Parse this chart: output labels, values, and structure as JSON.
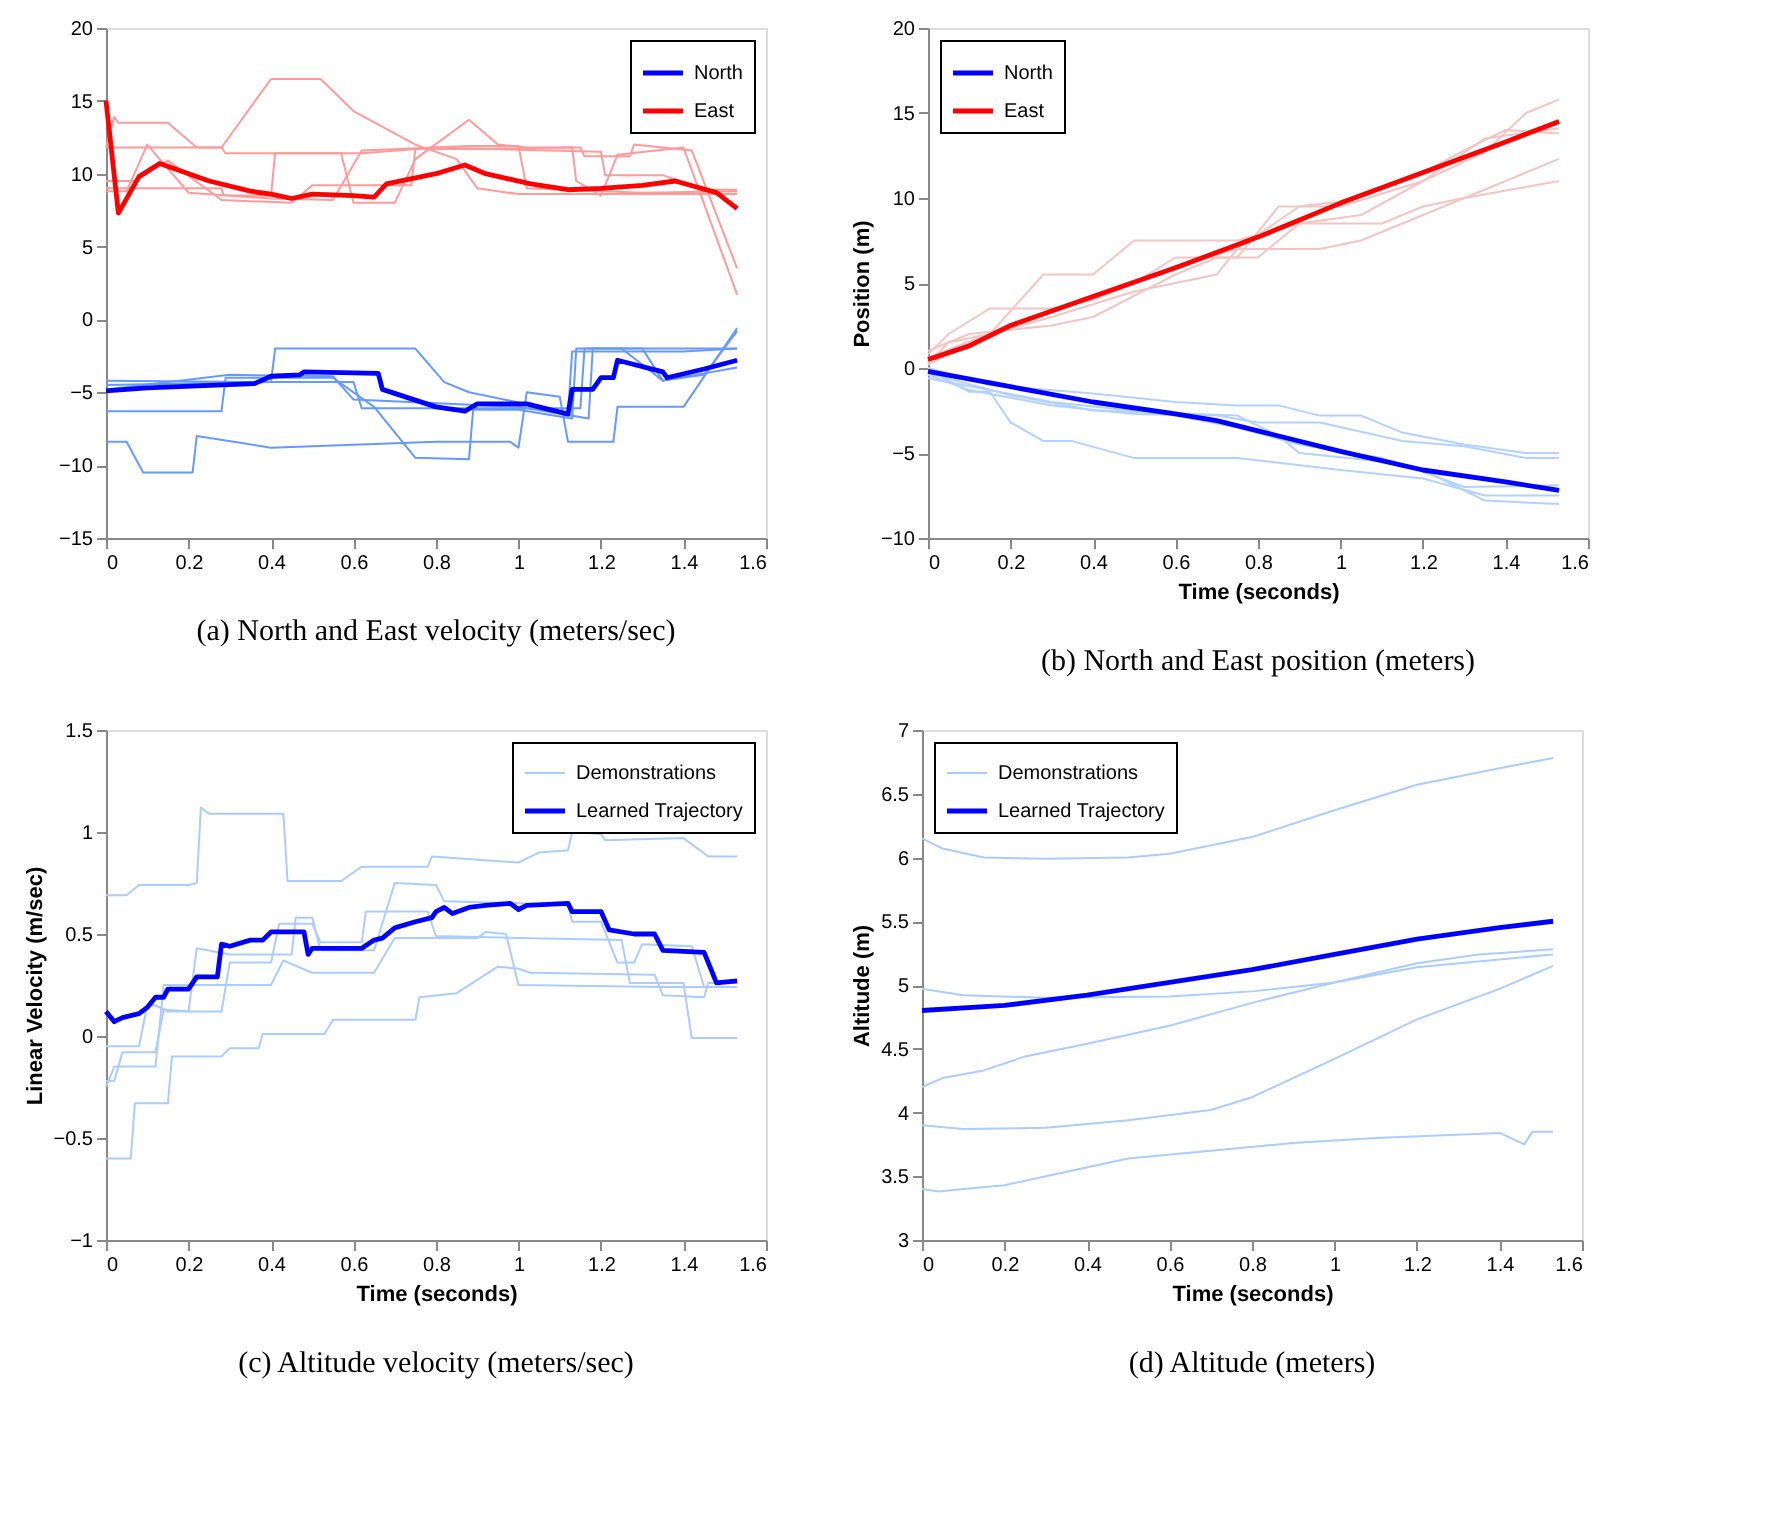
{
  "chart_data": [
    {
      "type": "line",
      "title": "(a)  North and East velocity (meters/sec)",
      "xlim": [
        0,
        1.6
      ],
      "xticks": [
        0,
        0.2,
        0.4,
        0.6,
        0.8,
        1,
        1.2,
        1.4,
        1.6
      ],
      "ylim": [
        -15,
        20
      ],
      "yticks": [
        -15,
        -10,
        -5,
        0,
        5,
        10,
        15,
        20
      ],
      "grid": false,
      "legend": "top right",
      "series": [
        {
          "color": "#ff9a9a",
          "x": [
            0,
            0.02,
            0.03,
            0.15,
            0.22,
            0.28,
            0.4,
            0.52,
            0.6,
            0.75,
            0.85,
            0.9,
            1.0,
            1.53
          ],
          "values": [
            11.8,
            13.9,
            13.5,
            13.5,
            11.8,
            11.8,
            16.5,
            16.5,
            14.3,
            12.0,
            11.0,
            9.0,
            8.6,
            8.6
          ]
        },
        {
          "color": "#ff9a9a",
          "x": [
            0,
            0.28,
            0.29,
            0.62,
            0.8,
            1.2,
            1.21,
            1.35,
            1.45,
            1.53
          ],
          "values": [
            11.8,
            11.8,
            11.4,
            11.4,
            11.8,
            11.5,
            9.9,
            9.9,
            8.9,
            8.9
          ]
        },
        {
          "color": "#ff9a9a",
          "x": [
            0,
            0.05,
            0.1,
            0.2,
            0.4,
            0.55,
            0.62,
            0.88,
            1.0,
            1.02,
            1.3,
            1.53
          ],
          "values": [
            8.8,
            8.8,
            12.0,
            8.7,
            8.3,
            8.2,
            11.6,
            11.9,
            11.9,
            9.0,
            8.7,
            8.8
          ]
        },
        {
          "color": "#ff9a9a",
          "x": [
            0,
            0.07,
            0.15,
            0.28,
            0.45,
            0.5,
            0.74,
            0.75,
            0.9,
            1.13,
            1.14,
            1.2,
            1.24,
            1.4,
            1.53
          ],
          "values": [
            9.5,
            9.5,
            10.9,
            8.2,
            8.0,
            9.2,
            9.2,
            11.7,
            11.7,
            11.8,
            9.5,
            8.5,
            11.3,
            11.8,
            1.7
          ]
        },
        {
          "color": "#ff9a9a",
          "x": [
            0,
            0.28,
            0.285,
            0.4,
            0.41,
            0.57,
            0.6,
            0.7,
            0.75,
            0.88,
            0.95,
            1.02,
            1.15,
            1.16,
            1.27,
            1.28,
            1.42,
            1.53
          ],
          "values": [
            9.0,
            9.0,
            8.5,
            8.5,
            11.4,
            11.4,
            8.0,
            8.0,
            11.0,
            13.7,
            12.0,
            11.8,
            11.8,
            11.2,
            11.2,
            12.0,
            11.6,
            3.5
          ]
        },
        {
          "color": "#6699ff",
          "x": [
            0,
            0.05,
            0.09,
            0.21,
            0.22,
            0.4,
            0.8,
            0.98,
            1.0,
            1.02,
            1.1,
            1.12,
            1.23,
            1.24,
            1.4,
            1.53
          ],
          "values": [
            -8.4,
            -8.4,
            -10.5,
            -10.5,
            -8.0,
            -8.8,
            -8.4,
            -8.4,
            -8.8,
            -5.0,
            -5.3,
            -8.4,
            -8.4,
            -6.0,
            -6.0,
            -0.6
          ]
        },
        {
          "color": "#6699ff",
          "x": [
            0,
            0.28,
            0.29,
            0.55,
            0.65,
            0.75,
            0.88,
            0.89,
            1.0,
            1.13,
            1.14,
            1.53
          ],
          "values": [
            -6.3,
            -6.3,
            -4.0,
            -4.0,
            -6.0,
            -9.5,
            -9.6,
            -6.2,
            -6.2,
            -6.8,
            -2.0,
            -2.0
          ]
        },
        {
          "color": "#6699ff",
          "x": [
            0,
            0.4,
            0.41,
            0.75,
            0.82,
            0.88,
            1.05,
            1.12,
            1.13,
            1.4,
            1.53
          ],
          "values": [
            -4.2,
            -4.3,
            -2.0,
            -2.0,
            -4.3,
            -5.0,
            -6.0,
            -6.5,
            -2.2,
            -2.2,
            -2.0
          ]
        },
        {
          "color": "#6699ff",
          "x": [
            0,
            0.4,
            0.6,
            0.62,
            0.9,
            1.15,
            1.16,
            1.3,
            1.35,
            1.53
          ],
          "values": [
            -4.5,
            -4.3,
            -4.3,
            -6.1,
            -6.1,
            -6.1,
            -2.0,
            -2.0,
            -4.2,
            -3.3
          ]
        },
        {
          "color": "#6699ff",
          "x": [
            0,
            0.3,
            0.55,
            0.6,
            1.0,
            1.17,
            1.18,
            1.25,
            1.35,
            1.45,
            1.53
          ],
          "values": [
            -4.8,
            -3.8,
            -3.9,
            -5.5,
            -6.0,
            -6.8,
            -2.0,
            -2.0,
            -4.2,
            -3.8,
            -0.8
          ]
        },
        {
          "name": "North",
          "color": "#0000ff",
          "x": [
            0,
            0.1,
            0.36,
            0.4,
            0.47,
            0.48,
            0.66,
            0.67,
            0.8,
            0.87,
            0.9,
            1.02,
            1.12,
            1.13,
            1.18,
            1.2,
            1.23,
            1.24,
            1.35,
            1.36,
            1.45,
            1.53
          ],
          "values": [
            -4.9,
            -4.7,
            -4.4,
            -3.9,
            -3.8,
            -3.6,
            -3.7,
            -4.8,
            -6.0,
            -6.3,
            -5.8,
            -5.8,
            -6.5,
            -4.8,
            -4.8,
            -4.0,
            -4.0,
            -2.8,
            -3.6,
            -4.0,
            -3.4,
            -2.8
          ]
        },
        {
          "name": "East",
          "color": "#ff0000",
          "x": [
            0,
            0.03,
            0.08,
            0.13,
            0.25,
            0.35,
            0.4,
            0.45,
            0.5,
            0.6,
            0.65,
            0.68,
            0.8,
            0.87,
            0.92,
            1.03,
            1.12,
            1.2,
            1.3,
            1.38,
            1.48,
            1.53
          ],
          "values": [
            15,
            7.3,
            9.8,
            10.7,
            9.5,
            8.8,
            8.6,
            8.3,
            8.6,
            8.5,
            8.4,
            9.3,
            10.0,
            10.6,
            10.0,
            9.3,
            8.9,
            9.0,
            9.2,
            9.5,
            8.7,
            7.6
          ]
        }
      ]
    },
    {
      "type": "line",
      "title": "(b)  North and East position (meters)",
      "xlabel": "Time (seconds)",
      "ylabel": "Position (m)",
      "xlim": [
        0,
        1.6
      ],
      "xticks": [
        0,
        0.2,
        0.4,
        0.6,
        0.8,
        1,
        1.2,
        1.4,
        1.6
      ],
      "ylim": [
        -10,
        20
      ],
      "yticks": [
        -10,
        -5,
        0,
        5,
        10,
        15,
        20
      ],
      "grid": false,
      "legend": "top left",
      "series": [
        {
          "color": "#f2c4c4",
          "x": [
            0,
            0.05,
            0.15,
            0.3,
            0.4,
            0.5,
            0.6,
            0.75,
            0.9,
            1.0,
            1.2,
            1.3,
            1.4,
            1.53
          ],
          "values": [
            0.8,
            2.0,
            3.5,
            3.5,
            4.0,
            5.0,
            6.0,
            7.0,
            9.5,
            9.8,
            11.5,
            12.8,
            14.0,
            13.8
          ]
        },
        {
          "color": "#f2c4c4",
          "x": [
            0,
            0.05,
            0.15,
            0.28,
            0.4,
            0.5,
            0.75,
            0.9,
            1.1,
            1.2,
            1.3,
            1.53
          ],
          "values": [
            0.3,
            1.5,
            2.0,
            5.5,
            5.5,
            7.5,
            7.5,
            8.5,
            8.5,
            9.5,
            10.0,
            11.0
          ]
        },
        {
          "color": "#f2c4c4",
          "x": [
            0,
            0.1,
            0.3,
            0.4,
            0.6,
            0.7,
            0.8,
            0.9,
            1.05,
            1.2,
            1.35,
            1.53
          ],
          "values": [
            1.0,
            2.0,
            2.5,
            3.0,
            5.5,
            6.5,
            6.5,
            8.5,
            9.0,
            11.0,
            13.5,
            14.1
          ]
        },
        {
          "color": "#f2c4c4",
          "x": [
            0,
            0.15,
            0.3,
            0.5,
            0.7,
            0.75,
            0.95,
            1.05,
            1.2,
            1.53
          ],
          "values": [
            0.2,
            2.0,
            3.0,
            4.5,
            5.5,
            7.0,
            7.0,
            7.5,
            9.0,
            12.3
          ]
        },
        {
          "color": "#f2c4c4",
          "x": [
            0,
            0.2,
            0.5,
            0.6,
            0.75,
            0.85,
            1.0,
            1.2,
            1.35,
            1.45,
            1.53
          ],
          "values": [
            0.6,
            2.5,
            5.0,
            6.5,
            6.5,
            9.5,
            9.5,
            11.0,
            12.7,
            15.0,
            15.8
          ]
        },
        {
          "color": "#b3d1ff",
          "x": [
            0,
            0.1,
            0.15,
            0.2,
            0.28,
            0.35,
            0.5,
            0.75,
            1.0,
            1.2,
            1.35,
            1.53
          ],
          "values": [
            -0.1,
            -1.4,
            -1.4,
            -3.2,
            -4.3,
            -4.3,
            -5.3,
            -5.3,
            -6.0,
            -6.5,
            -7.5,
            -7.5
          ]
        },
        {
          "color": "#b3d1ff",
          "x": [
            0,
            0.15,
            0.4,
            0.6,
            0.75,
            0.85,
            0.95,
            1.05,
            1.15,
            1.3,
            1.45,
            1.53
          ],
          "values": [
            0.0,
            -1.0,
            -1.5,
            -2.0,
            -2.2,
            -2.2,
            -2.8,
            -2.8,
            -3.8,
            -4.5,
            -5.0,
            -5.0
          ]
        },
        {
          "color": "#b3d1ff",
          "x": [
            0,
            0.1,
            0.3,
            0.5,
            0.7,
            0.8,
            0.95,
            1.15,
            1.3,
            1.45,
            1.53
          ],
          "values": [
            -0.4,
            -1.3,
            -2.2,
            -2.7,
            -2.8,
            -3.2,
            -3.2,
            -4.3,
            -4.6,
            -5.3,
            -5.3
          ]
        },
        {
          "color": "#b3d1ff",
          "x": [
            0,
            0.2,
            0.4,
            0.75,
            0.85,
            0.9,
            1.1,
            1.2,
            1.3,
            1.53
          ],
          "values": [
            -0.3,
            -1.6,
            -2.5,
            -2.8,
            -4.0,
            -5.0,
            -5.5,
            -6.1,
            -7.0,
            -6.9
          ]
        },
        {
          "color": "#b3d1ff",
          "x": [
            0,
            0.3,
            0.6,
            0.75,
            0.9,
            1.1,
            1.2,
            1.35,
            1.53
          ],
          "values": [
            -0.6,
            -2.0,
            -2.8,
            -3.5,
            -4.5,
            -5.3,
            -6.0,
            -7.8,
            -8.0
          ]
        },
        {
          "name": "North",
          "color": "#0000ff",
          "x": [
            0,
            0.2,
            0.4,
            0.6,
            0.7,
            0.8,
            1.0,
            1.2,
            1.4,
            1.53
          ],
          "values": [
            -0.2,
            -1.1,
            -2.0,
            -2.7,
            -3.1,
            -3.7,
            -4.9,
            -6.0,
            -6.7,
            -7.2
          ]
        },
        {
          "name": "East",
          "color": "#ff0000",
          "x": [
            0,
            0.1,
            0.2,
            0.4,
            0.6,
            0.8,
            1.0,
            1.2,
            1.4,
            1.53
          ],
          "values": [
            0.5,
            1.3,
            2.5,
            4.2,
            5.9,
            7.7,
            9.7,
            11.5,
            13.3,
            14.5
          ]
        }
      ]
    },
    {
      "type": "line",
      "title": "(c)  Altitude velocity (meters/sec)",
      "xlabel": "Time (seconds)",
      "ylabel": "Linear Velocity (m/sec)",
      "xlim": [
        0,
        1.6
      ],
      "xticks": [
        0,
        0.2,
        0.4,
        0.6,
        0.8,
        1,
        1.2,
        1.4,
        1.6
      ],
      "ylim": [
        -1,
        1.5
      ],
      "yticks": [
        -1,
        -0.5,
        0,
        0.5,
        1,
        1.5
      ],
      "grid": false,
      "legend": "top right",
      "series": [
        {
          "name": "Demonstrations",
          "color": "#aaccff",
          "x": [
            0,
            0.05,
            0.08,
            0.2,
            0.22,
            0.23,
            0.25,
            0.43,
            0.44,
            0.57,
            0.62,
            0.78,
            0.79,
            1.0,
            1.05,
            1.12,
            1.13,
            1.2,
            1.21,
            1.4,
            1.46,
            1.53
          ],
          "values": [
            0.69,
            0.69,
            0.74,
            0.74,
            0.75,
            1.12,
            1.09,
            1.09,
            0.76,
            0.76,
            0.83,
            0.83,
            0.88,
            0.85,
            0.9,
            0.91,
            1.0,
            0.99,
            0.96,
            0.97,
            0.88,
            0.88
          ]
        },
        {
          "color": "#aaccff",
          "x": [
            0,
            0.02,
            0.04,
            0.12,
            0.14,
            0.2,
            0.22,
            0.3,
            0.45,
            0.46,
            0.5,
            0.52,
            0.65,
            0.7,
            0.8,
            0.82,
            1.02,
            1.12,
            1.13,
            1.2,
            1.24,
            1.28,
            1.3,
            1.42,
            1.45,
            1.53
          ],
          "values": [
            -0.22,
            -0.22,
            -0.08,
            -0.08,
            0.13,
            0.12,
            0.43,
            0.4,
            0.4,
            0.58,
            0.58,
            0.42,
            0.42,
            0.75,
            0.74,
            0.66,
            0.65,
            0.64,
            0.56,
            0.56,
            0.36,
            0.36,
            0.45,
            0.44,
            0.24,
            0.24
          ]
        },
        {
          "color": "#aaccff",
          "x": [
            0,
            0.08,
            0.1,
            0.12,
            0.15,
            0.28,
            0.3,
            0.4,
            0.42,
            0.5,
            0.52,
            0.62,
            0.63,
            0.78,
            0.8,
            1.0,
            1.25,
            1.27,
            1.4,
            1.42,
            1.53
          ],
          "values": [
            -0.05,
            -0.05,
            0.15,
            0.15,
            0.12,
            0.12,
            0.36,
            0.36,
            0.55,
            0.55,
            0.46,
            0.46,
            0.61,
            0.61,
            0.49,
            0.48,
            0.47,
            0.26,
            0.26,
            -0.01,
            -0.01
          ]
        },
        {
          "color": "#aaccff",
          "x": [
            0,
            0.02,
            0.12,
            0.14,
            0.4,
            0.43,
            0.5,
            0.65,
            0.7,
            0.9,
            0.92,
            0.97,
            1.0,
            1.35,
            1.53
          ],
          "values": [
            -0.25,
            -0.15,
            -0.15,
            0.25,
            0.25,
            0.37,
            0.31,
            0.31,
            0.48,
            0.48,
            0.51,
            0.5,
            0.25,
            0.24,
            0.24
          ]
        },
        {
          "color": "#aaccff",
          "x": [
            0,
            0.06,
            0.07,
            0.15,
            0.16,
            0.28,
            0.3,
            0.37,
            0.38,
            0.53,
            0.55,
            0.75,
            0.76,
            0.85,
            0.95,
            1.0,
            1.03,
            1.33,
            1.35,
            1.45,
            1.46,
            1.53
          ],
          "values": [
            -0.6,
            -0.6,
            -0.33,
            -0.33,
            -0.1,
            -0.1,
            -0.06,
            -0.06,
            0.01,
            0.01,
            0.08,
            0.08,
            0.19,
            0.21,
            0.34,
            0.33,
            0.31,
            0.3,
            0.2,
            0.19,
            0.26,
            0.26
          ]
        },
        {
          "name": "Learned Trajectory",
          "color": "#0000ff",
          "x": [
            0,
            0.02,
            0.04,
            0.08,
            0.1,
            0.12,
            0.14,
            0.15,
            0.2,
            0.22,
            0.27,
            0.28,
            0.3,
            0.35,
            0.38,
            0.4,
            0.48,
            0.49,
            0.5,
            0.62,
            0.65,
            0.67,
            0.7,
            0.75,
            0.79,
            0.8,
            0.82,
            0.84,
            0.88,
            0.92,
            0.98,
            1.0,
            1.02,
            1.12,
            1.13,
            1.2,
            1.22,
            1.28,
            1.33,
            1.35,
            1.45,
            1.48,
            1.53
          ],
          "values": [
            0.12,
            0.07,
            0.09,
            0.11,
            0.14,
            0.19,
            0.19,
            0.23,
            0.23,
            0.29,
            0.29,
            0.45,
            0.44,
            0.47,
            0.47,
            0.51,
            0.51,
            0.4,
            0.43,
            0.43,
            0.47,
            0.48,
            0.53,
            0.56,
            0.58,
            0.61,
            0.63,
            0.6,
            0.63,
            0.64,
            0.65,
            0.62,
            0.64,
            0.65,
            0.61,
            0.61,
            0.52,
            0.5,
            0.5,
            0.42,
            0.41,
            0.26,
            0.27
          ]
        }
      ]
    },
    {
      "type": "line",
      "title": "(d)  Altitude (meters)",
      "xlabel": "Time (seconds)",
      "ylabel": "Altitude (m)",
      "xlim": [
        0,
        1.6
      ],
      "xticks": [
        0,
        0.2,
        0.4,
        0.6,
        0.8,
        1,
        1.2,
        1.4,
        1.6
      ],
      "ylim": [
        3,
        7
      ],
      "yticks": [
        3,
        3.5,
        4,
        4.5,
        5,
        5.5,
        6,
        6.5,
        7
      ],
      "grid": false,
      "legend": "top left",
      "series": [
        {
          "name": "Demonstrations",
          "color": "#aaccff",
          "x": [
            0,
            0.05,
            0.15,
            0.3,
            0.5,
            0.6,
            0.8,
            1.0,
            1.2,
            1.4,
            1.53
          ],
          "values": [
            6.15,
            6.07,
            6.0,
            5.99,
            6.0,
            6.03,
            6.16,
            6.37,
            6.57,
            6.7,
            6.78
          ]
        },
        {
          "color": "#aaccff",
          "x": [
            0,
            0.1,
            0.3,
            0.6,
            0.8,
            1.0,
            1.2,
            1.35,
            1.53
          ],
          "values": [
            4.97,
            4.92,
            4.9,
            4.91,
            4.95,
            5.02,
            5.17,
            5.24,
            5.28
          ]
        },
        {
          "color": "#aaccff",
          "x": [
            0,
            0.05,
            0.15,
            0.25,
            0.4,
            0.6,
            0.8,
            1.0,
            1.2,
            1.53
          ],
          "values": [
            4.2,
            4.27,
            4.33,
            4.44,
            4.54,
            4.68,
            4.86,
            5.02,
            5.14,
            5.24
          ]
        },
        {
          "color": "#aaccff",
          "x": [
            0,
            0.1,
            0.3,
            0.5,
            0.7,
            0.8,
            1.0,
            1.2,
            1.4,
            1.53
          ],
          "values": [
            3.9,
            3.87,
            3.88,
            3.94,
            4.02,
            4.12,
            4.42,
            4.73,
            4.97,
            5.15
          ]
        },
        {
          "color": "#aaccff",
          "x": [
            0,
            0.04,
            0.1,
            0.2,
            0.3,
            0.5,
            0.7,
            0.9,
            1.1,
            1.4,
            1.46,
            1.48,
            1.53
          ],
          "values": [
            3.4,
            3.38,
            3.4,
            3.43,
            3.5,
            3.64,
            3.7,
            3.76,
            3.8,
            3.84,
            3.75,
            3.85,
            3.85
          ]
        },
        {
          "name": "Learned Trajectory",
          "color": "#0000ff",
          "x": [
            0,
            0.2,
            0.4,
            0.6,
            0.8,
            1.0,
            1.2,
            1.4,
            1.53
          ],
          "values": [
            4.8,
            4.84,
            4.92,
            5.02,
            5.12,
            5.24,
            5.36,
            5.45,
            5.5
          ]
        }
      ]
    }
  ]
}
